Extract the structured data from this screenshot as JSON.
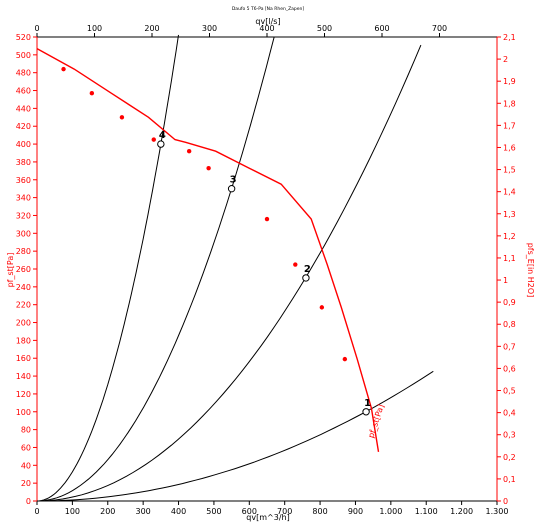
{
  "chart_data": {
    "type": "line",
    "title": "Daufo 5 T6-Pa [Na Rhen_Zapen]",
    "top_axis": {
      "label": "qv[l/s]",
      "range": [
        0,
        800
      ],
      "ticks": [
        0,
        100,
        200,
        300,
        400,
        500,
        600,
        700
      ]
    },
    "bottom_axis": {
      "label": "qv[m^3/h]",
      "range": [
        0,
        1300
      ],
      "ticks": [
        "0",
        "100",
        "200",
        "300",
        "400",
        "500",
        "600",
        "700",
        "800",
        "900",
        "1.000",
        "1.100",
        "1.200",
        "1.300"
      ]
    },
    "left_axis": {
      "label": "pf_st[Pa]",
      "range": [
        0,
        520
      ],
      "ticks": [
        0,
        20,
        40,
        60,
        80,
        100,
        120,
        140,
        160,
        180,
        200,
        220,
        240,
        260,
        280,
        300,
        320,
        340,
        360,
        380,
        400,
        420,
        440,
        460,
        480,
        500,
        520
      ]
    },
    "right_axis": {
      "label": "pfs_E[in H2O]",
      "range": [
        0,
        2.1
      ],
      "ticks": [
        "0",
        "0,1",
        "0,2",
        "0,3",
        "0,4",
        "0,5",
        "0,6",
        "0,7",
        "0,8",
        "0,9",
        "1",
        "1,1",
        "1,2",
        "1,3",
        "1,4",
        "1,5",
        "1,6",
        "1,7",
        "1,8",
        "1,9",
        "2",
        "2,1"
      ]
    },
    "fan_curve": {
      "name": "pf_st[Pa]",
      "color": "#ff0000",
      "x": [
        0,
        105,
        210,
        315,
        390,
        420,
        505,
        600,
        690,
        775,
        820,
        860,
        905,
        945,
        965
      ],
      "y": [
        507,
        484,
        457,
        430,
        405,
        402,
        392,
        373,
        355,
        316,
        265,
        217,
        159,
        104,
        55
      ]
    },
    "marker_points": {
      "x": [
        75,
        155,
        240,
        330,
        430,
        485,
        650,
        730,
        805,
        870
      ],
      "y": [
        484,
        457,
        430,
        405,
        392,
        373,
        316,
        265,
        217,
        159
      ]
    },
    "system_curves": [
      {
        "label": "1",
        "k": 0.0001159,
        "x_max": 1120,
        "op_point": [
          930,
          100
        ]
      },
      {
        "label": "2",
        "k": 0.000434,
        "x_max": 1085,
        "op_point": [
          760,
          250
        ]
      },
      {
        "label": "3",
        "k": 0.001158,
        "x_max": 670,
        "op_point": [
          550,
          350
        ]
      },
      {
        "label": "4",
        "k": 0.003265,
        "x_max": 400,
        "op_point": [
          350,
          400
        ]
      }
    ],
    "grid": false
  }
}
